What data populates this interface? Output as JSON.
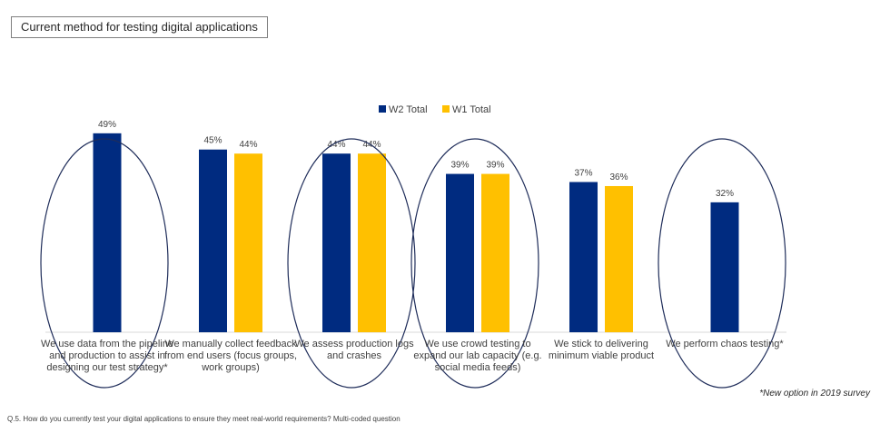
{
  "title": "Current method for testing digital applications",
  "footnote": "*New option in 2019 survey",
  "question": "Q.5. How do you currently test your digital applications to ensure they meet real-world requirements?  Multi-coded question",
  "colors": {
    "w2": "#002b80",
    "w1": "#ffc000",
    "ellipse": "#1f2d5a",
    "axis": "#d9d9d9"
  },
  "chart_data": {
    "type": "bar",
    "legend_position": "top-center",
    "categories": [
      "We use data from the pipeline and production to assist in designing our test strategy*",
      "We manually collect feedback from end users (focus groups, work groups)",
      "We assess production logs and crashes",
      "We use crowd testing to expand our lab capacity (e.g. social media feeds)",
      "We stick to delivering minimum viable product",
      "We perform chaos testing*"
    ],
    "series": [
      {
        "name": "W2 Total",
        "values": [
          49,
          45,
          44,
          39,
          37,
          32
        ],
        "labels": [
          "49%",
          "45%",
          "44%",
          "39%",
          "37%",
          "32%"
        ]
      },
      {
        "name": "W1 Total",
        "values": [
          null,
          44,
          44,
          39,
          36,
          null
        ],
        "labels": [
          "",
          "44%",
          "44%",
          "39%",
          "36%",
          ""
        ]
      }
    ],
    "ylim": [
      0,
      55
    ],
    "highlighted_categories": [
      0,
      2,
      3,
      5
    ]
  }
}
